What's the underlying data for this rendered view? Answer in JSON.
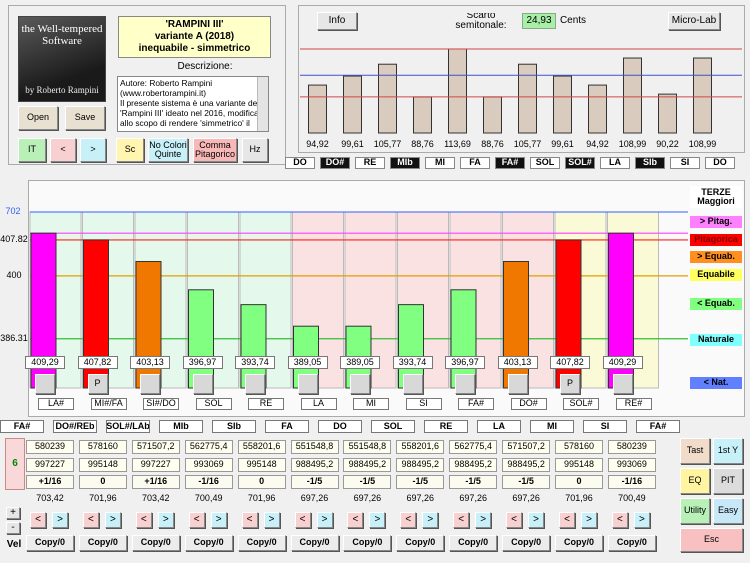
{
  "app": {
    "logo_title": "the Well-tempered Software",
    "logo_byline": "by Roberto Rampini",
    "preset_title": "'RAMPINI III'",
    "preset_variant": "variante A (2018)",
    "preset_type": "inequabile - simmetrico",
    "description_label": "Descrizione:",
    "description": [
      "Autore: Roberto Rampini",
      "(www.robertorampini.it)",
      "Il presente sistema è una variante del",
      "'Rampini III' ideato nel 2016, modificato",
      "allo scopo di rendere 'simmetrico' il"
    ],
    "buttons": [
      "Open",
      "Save",
      "IT",
      "<",
      ">",
      "Sc",
      "No Colori Quinte",
      "Comma Pitagorico",
      "Hz"
    ],
    "top_buttons": [
      "Info",
      "Micro-Lab"
    ],
    "deviation_label": "Scarto semitonale:",
    "deviation_value": "24,93",
    "deviation_unit": "Cents",
    "side_buttons": [
      "Tast",
      "1st Y",
      "EQ",
      "PIT",
      "Utility",
      "Easy",
      "Esc"
    ]
  },
  "chart_data": [
    {
      "type": "bar",
      "categories": [
        null,
        null,
        null,
        null,
        null,
        null,
        null,
        null,
        null,
        null,
        null,
        null
      ],
      "notes": [
        "DO",
        "DO#",
        "RE",
        "MIb",
        "MI",
        "FA",
        "FA#",
        "SOL",
        "SOL#",
        "LA",
        "SIb",
        "SI",
        "DO"
      ],
      "values": [
        94.92,
        99.61,
        105.77,
        88.76,
        113.69,
        88.76,
        105.77,
        99.61,
        94.92,
        108.99,
        90.22,
        108.99
      ],
      "value_labels": [
        "94,92",
        "99,61",
        "105,77",
        "88,76",
        "113,69",
        "88,76",
        "105,77",
        "99,61",
        "94,92",
        "108,99",
        "90,22",
        "108,99"
      ],
      "color": "#d9cbbd",
      "ylim": [
        70,
        135
      ],
      "reference_lines": [
        {
          "value": 113.69,
          "color": "#d04848"
        },
        {
          "value": 100,
          "color": "#4050c8"
        },
        {
          "value": 88.76,
          "color": "#d04848"
        }
      ]
    },
    {
      "type": "bar",
      "title": "TERZE Maggiori",
      "categories": [
        "LA#",
        "MI#/FA",
        "SI#/DO",
        "SOL",
        "RE",
        "LA",
        "MI",
        "SI",
        "FA#",
        "DO#",
        "SOL#",
        "RE#"
      ],
      "values": [
        409.29,
        407.82,
        403.13,
        396.97,
        393.74,
        389.05,
        389.05,
        393.74,
        396.97,
        403.13,
        407.82,
        409.29
      ],
      "value_labels": [
        "409,29",
        "407,82",
        "403,13",
        "396,97",
        "393,74",
        "389,05",
        "389,05",
        "393,74",
        "396,97",
        "403,13",
        "407,82",
        "409,29"
      ],
      "colors": [
        "#ff00ff",
        "#ff0000",
        "#f07800",
        "#80ff80",
        "#80ff80",
        "#80ff80",
        "#80ff80",
        "#80ff80",
        "#80ff80",
        "#f07800",
        "#ff0000",
        "#ff00ff"
      ],
      "markers": [
        null,
        "P",
        null,
        null,
        null,
        null,
        null,
        null,
        null,
        null,
        "P",
        null
      ],
      "ylim": [
        375.6,
        413.9
      ],
      "yticks": [
        386.31,
        400,
        407.82
      ],
      "grid_colors": [
        "#30c030",
        "#e0a000",
        "#ff2020"
      ],
      "top_label": 702,
      "top_label_color": "#3060ff",
      "reference_lines": [
        {
          "value": 409.29,
          "color": "#ff40ff"
        }
      ],
      "legend": [
        {
          "label": "> Pitag.",
          "color": "#ff80ff"
        },
        {
          "label": "Pitagorica",
          "color": "#ff0000"
        },
        {
          "label": "> Equab.",
          "color": "#ff9020"
        },
        {
          "label": "Equabile",
          "color": "#ffff60"
        },
        {
          "label": "< Equab.",
          "color": "#80ff80"
        },
        {
          "label": "Naturale",
          "color": "#80ffff"
        },
        {
          "label": "< Nat.",
          "color": "#6080ff"
        }
      ]
    }
  ],
  "table": {
    "notes": [
      "FA#",
      "DO#/REb",
      "SOL#/LAb",
      "MIb",
      "SIb",
      "FA",
      "DO",
      "SOL",
      "RE",
      "LA",
      "MI",
      "SI",
      "FA#"
    ],
    "rows": [
      [
        "580239",
        "578160",
        "571507,2",
        "562775,4",
        "558201,6",
        "551548,8",
        "551548,8",
        "558201,6",
        "562775,4",
        "571507,2",
        "578160",
        "580239"
      ],
      [
        "997227",
        "995148",
        "997227",
        "993069",
        "995148",
        "988495,2",
        "988495,2",
        "988495,2",
        "988495,2",
        "988495,2",
        "995148",
        "993069"
      ],
      [
        "+1/16",
        "0",
        "+1/16",
        "-1/16",
        "0",
        "-1/5",
        "-1/5",
        "-1/5",
        "-1/5",
        "-1/5",
        "0",
        "-1/16"
      ],
      [
        "703,42",
        "701,96",
        "703,42",
        "700,49",
        "701,96",
        "697,26",
        "697,26",
        "697,26",
        "697,26",
        "697,26",
        "701,96",
        "700,49"
      ]
    ],
    "nav": [
      "<",
      ">"
    ],
    "copy": "Copy/0",
    "counter": "6",
    "plus": "+",
    "minus": "-",
    "vel": "Vel"
  }
}
